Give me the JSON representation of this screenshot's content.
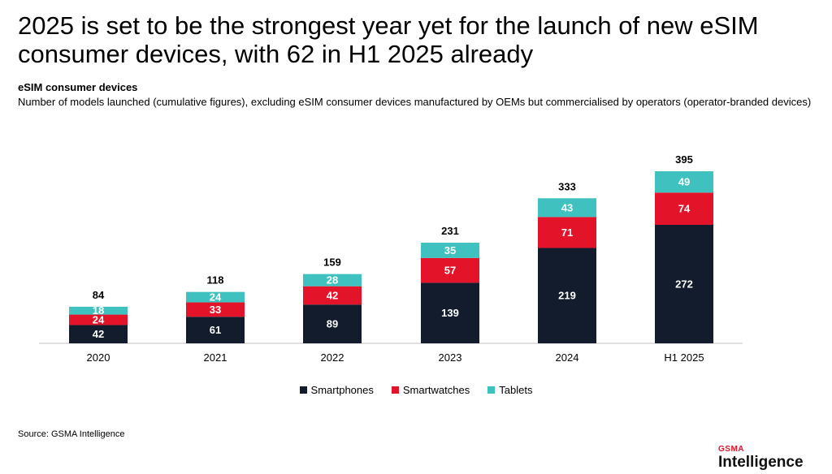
{
  "header": {
    "title": "2025 is set to be the strongest year yet for the launch of new eSIM consumer devices, with 62 in H1 2025 already",
    "subtitle": "eSIM consumer devices",
    "description": "Number of models launched (cumulative figures), excluding eSIM consumer devices manufactured by OEMs but commercialised by operators (operator-branded devices)"
  },
  "footer": {
    "source": "Source: GSMA Intelligence",
    "logo_top": "GSMA",
    "logo_bottom": "Intelligence"
  },
  "colors": {
    "smartphones": "#121c2d",
    "smartwatches": "#e3132a",
    "tablets": "#3fc1c0"
  },
  "chart_data": {
    "type": "bar",
    "stacked": true,
    "categories": [
      "2020",
      "2021",
      "2022",
      "2023",
      "2024",
      "H1 2025"
    ],
    "series": [
      {
        "name": "Smartphones",
        "values": [
          42,
          61,
          89,
          139,
          219,
          272
        ]
      },
      {
        "name": "Smartwatches",
        "values": [
          24,
          33,
          42,
          57,
          71,
          74
        ]
      },
      {
        "name": "Tablets",
        "values": [
          18,
          24,
          28,
          35,
          43,
          49
        ]
      }
    ],
    "totals": [
      84,
      118,
      159,
      231,
      333,
      395
    ],
    "legend_position": "bottom",
    "grid": false
  }
}
